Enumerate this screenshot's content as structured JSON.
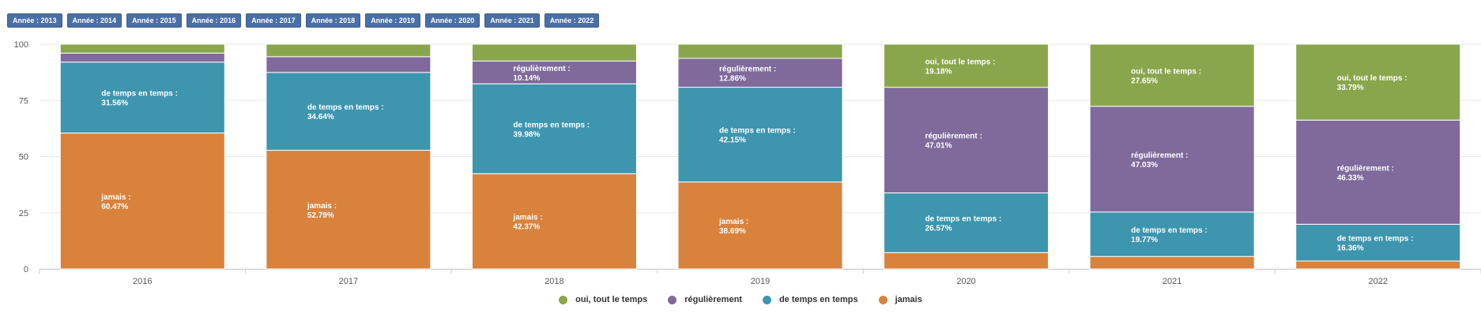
{
  "tabs": [
    "Année : 2013",
    "Année : 2014",
    "Année : 2015",
    "Année : 2016",
    "Année : 2017",
    "Année : 2018",
    "Année : 2019",
    "Année : 2020",
    "Année : 2021",
    "Année : 2022"
  ],
  "chart_data": {
    "type": "bar",
    "stacked": true,
    "categories": [
      "2016",
      "2017",
      "2018",
      "2019",
      "2020",
      "2021",
      "2022"
    ],
    "ylim": [
      0,
      100
    ],
    "yticks": [
      "0",
      "25",
      "50",
      "75",
      "100"
    ],
    "grid": true,
    "legend_position": "bottom-center",
    "series": [
      {
        "name": "jamais",
        "color": "#d9823b",
        "values": [
          60.47,
          52.79,
          42.37,
          38.69,
          7.24,
          5.55,
          3.52
        ]
      },
      {
        "name": "de temps en temps",
        "color": "#3d95ae",
        "values": [
          31.56,
          34.64,
          39.98,
          42.15,
          26.57,
          19.77,
          16.36
        ]
      },
      {
        "name": "régulièrement",
        "color": "#7f6a9b",
        "values": [
          3.97,
          7.0,
          10.14,
          12.86,
          47.01,
          47.03,
          46.33
        ]
      },
      {
        "name": "oui, tout le temps",
        "color": "#89a64c",
        "values": [
          4.0,
          5.57,
          7.51,
          6.3,
          19.18,
          27.65,
          33.79
        ]
      }
    ],
    "data_labels": [
      {
        "category": "2016",
        "series": "jamais",
        "label": "jamais :",
        "value": "60.47%"
      },
      {
        "category": "2016",
        "series": "de temps en temps",
        "label": "de temps en temps :",
        "value": "31.56%"
      },
      {
        "category": "2017",
        "series": "jamais",
        "label": "jamais :",
        "value": "52.79%"
      },
      {
        "category": "2017",
        "series": "de temps en temps",
        "label": "de temps en temps :",
        "value": "34.64%"
      },
      {
        "category": "2018",
        "series": "jamais",
        "label": "jamais :",
        "value": "42.37%"
      },
      {
        "category": "2018",
        "series": "de temps en temps",
        "label": "de temps en temps :",
        "value": "39.98%"
      },
      {
        "category": "2018",
        "series": "régulièrement",
        "label": "régulièrement :",
        "value": "10.14%"
      },
      {
        "category": "2019",
        "series": "jamais",
        "label": "jamais :",
        "value": "38.69%"
      },
      {
        "category": "2019",
        "series": "de temps en temps",
        "label": "de temps en temps :",
        "value": "42.15%"
      },
      {
        "category": "2019",
        "series": "régulièrement",
        "label": "régulièrement :",
        "value": "12.86%"
      },
      {
        "category": "2020",
        "series": "de temps en temps",
        "label": "de temps en temps :",
        "value": "26.57%"
      },
      {
        "category": "2020",
        "series": "régulièrement",
        "label": "régulièrement :",
        "value": "47.01%"
      },
      {
        "category": "2020",
        "series": "oui, tout le temps",
        "label": "oui, tout le temps :",
        "value": "19.18%"
      },
      {
        "category": "2021",
        "series": "de temps en temps",
        "label": "de temps en temps :",
        "value": "19.77%"
      },
      {
        "category": "2021",
        "series": "régulièrement",
        "label": "régulièrement :",
        "value": "47.03%"
      },
      {
        "category": "2021",
        "series": "oui, tout le temps",
        "label": "oui, tout le temps :",
        "value": "27.65%"
      },
      {
        "category": "2022",
        "series": "de temps en temps",
        "label": "de temps en temps :",
        "value": "16.36%"
      },
      {
        "category": "2022",
        "series": "régulièrement",
        "label": "régulièrement :",
        "value": "46.33%"
      },
      {
        "category": "2022",
        "series": "oui, tout le temps",
        "label": "oui, tout le temps :",
        "value": "33.79%"
      }
    ],
    "legend": [
      "oui, tout le temps",
      "régulièrement",
      "de temps en temps",
      "jamais"
    ]
  }
}
